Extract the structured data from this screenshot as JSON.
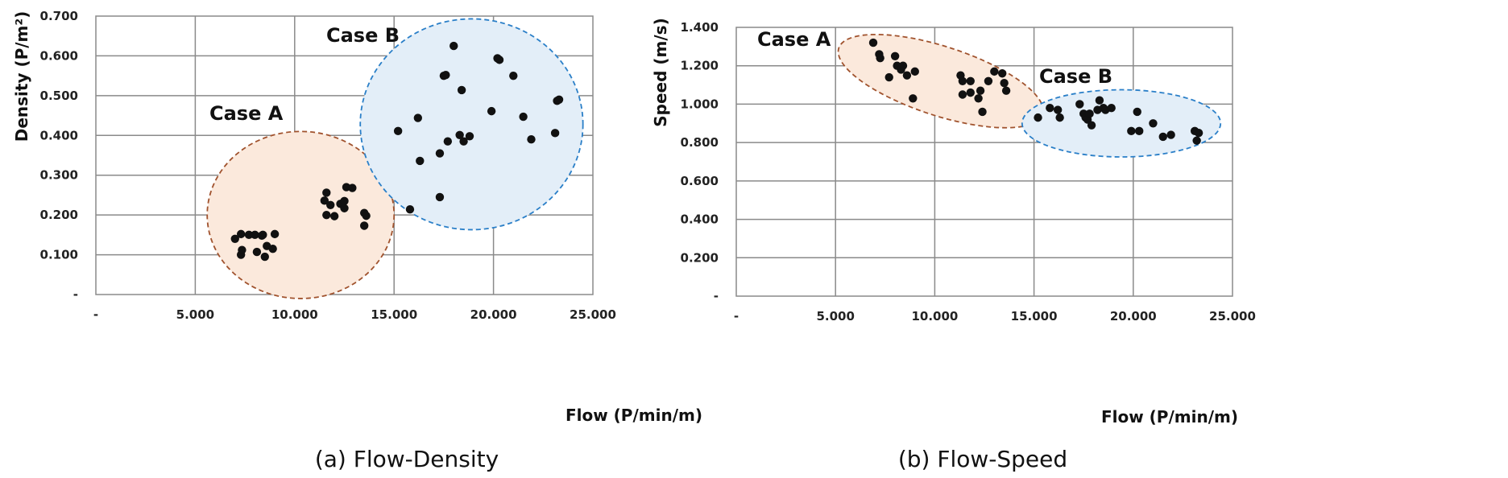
{
  "chart_data": [
    {
      "type": "scatter",
      "caption": "(a) Flow-Density",
      "xlabel": "Flow (P/min/m)",
      "ylabel": "Density (P/m²)",
      "xlim": [
        0,
        25000
      ],
      "ylim": [
        0,
        0.7
      ],
      "x_ticks": [
        "-",
        "5.000",
        "10.000",
        "15.000",
        "20.000",
        "25.000"
      ],
      "y_ticks": [
        "-",
        "0.100",
        "0.200",
        "0.300",
        "0.400",
        "0.500",
        "0.600",
        "0.700"
      ],
      "grid": true,
      "clusters": [
        {
          "label": "Case A",
          "fill": "#fbe9dc",
          "stroke": "#a0522d",
          "ellipse": {
            "cx": 10300,
            "cy": 0.2,
            "rx": 4700,
            "ry": 0.21
          }
        },
        {
          "label": "Case B",
          "fill": "#e3eef8",
          "stroke": "#2a7fc8",
          "ellipse": {
            "cx": 18900,
            "cy": 0.428,
            "rx": 5600,
            "ry": 0.265
          }
        }
      ],
      "points": [
        [
          7000,
          0.14
        ],
        [
          7300,
          0.152
        ],
        [
          7300,
          0.1
        ],
        [
          7350,
          0.112
        ],
        [
          7700,
          0.15
        ],
        [
          8000,
          0.15
        ],
        [
          8100,
          0.107
        ],
        [
          8350,
          0.148
        ],
        [
          8400,
          0.15
        ],
        [
          8500,
          0.095
        ],
        [
          8600,
          0.122
        ],
        [
          8900,
          0.115
        ],
        [
          9000,
          0.152
        ],
        [
          11500,
          0.236
        ],
        [
          11600,
          0.256
        ],
        [
          11600,
          0.2
        ],
        [
          11800,
          0.225
        ],
        [
          12000,
          0.197
        ],
        [
          12300,
          0.228
        ],
        [
          12500,
          0.235
        ],
        [
          12500,
          0.217
        ],
        [
          12600,
          0.27
        ],
        [
          12900,
          0.268
        ],
        [
          13500,
          0.205
        ],
        [
          13500,
          0.173
        ],
        [
          13600,
          0.198
        ],
        [
          15200,
          0.411
        ],
        [
          15800,
          0.214
        ],
        [
          16200,
          0.444
        ],
        [
          16300,
          0.336
        ],
        [
          17300,
          0.245
        ],
        [
          17300,
          0.355
        ],
        [
          17500,
          0.55
        ],
        [
          17600,
          0.552
        ],
        [
          17700,
          0.385
        ],
        [
          18000,
          0.625
        ],
        [
          18300,
          0.401
        ],
        [
          18400,
          0.514
        ],
        [
          18500,
          0.385
        ],
        [
          18800,
          0.398
        ],
        [
          19900,
          0.461
        ],
        [
          20200,
          0.594
        ],
        [
          20300,
          0.59
        ],
        [
          21000,
          0.55
        ],
        [
          21500,
          0.447
        ],
        [
          21900,
          0.39
        ],
        [
          23100,
          0.406
        ],
        [
          23200,
          0.487
        ],
        [
          23300,
          0.49
        ]
      ]
    },
    {
      "type": "scatter",
      "caption": "(b) Flow-Speed",
      "xlabel": "Flow (P/min/m)",
      "ylabel": "Speed (m/s)",
      "xlim": [
        0,
        25000
      ],
      "ylim": [
        0,
        1.4
      ],
      "x_ticks": [
        "-",
        "5.000",
        "10.000",
        "15.000",
        "20.000",
        "25.000"
      ],
      "y_ticks": [
        "-",
        "0.200",
        "0.400",
        "0.600",
        "0.800",
        "1.000",
        "1.200",
        "1.400"
      ],
      "grid": true,
      "clusters": [
        {
          "label": "Case A",
          "fill": "#fbe9dc",
          "stroke": "#a0522d",
          "ellipse": {
            "cx": 10300,
            "cy": 1.12,
            "rx": 5400,
            "ry": 0.18,
            "rotate": 18
          }
        },
        {
          "label": "Case B",
          "fill": "#e3eef8",
          "stroke": "#2a7fc8",
          "ellipse": {
            "cx": 19400,
            "cy": 0.9,
            "rx": 5000,
            "ry": 0.175
          }
        }
      ],
      "points": [
        [
          6900,
          1.32
        ],
        [
          7200,
          1.26
        ],
        [
          7250,
          1.24
        ],
        [
          7700,
          1.14
        ],
        [
          8000,
          1.25
        ],
        [
          8100,
          1.2
        ],
        [
          8300,
          1.18
        ],
        [
          8400,
          1.2
        ],
        [
          8600,
          1.15
        ],
        [
          8900,
          1.03
        ],
        [
          9000,
          1.17
        ],
        [
          11300,
          1.15
        ],
        [
          11400,
          1.12
        ],
        [
          11400,
          1.05
        ],
        [
          11800,
          1.12
        ],
        [
          11800,
          1.06
        ],
        [
          12200,
          1.03
        ],
        [
          12300,
          1.07
        ],
        [
          12400,
          0.96
        ],
        [
          12700,
          1.12
        ],
        [
          13000,
          1.17
        ],
        [
          13400,
          1.16
        ],
        [
          13500,
          1.11
        ],
        [
          13600,
          1.07
        ],
        [
          15200,
          0.93
        ],
        [
          15800,
          0.98
        ],
        [
          16200,
          0.97
        ],
        [
          16300,
          0.93
        ],
        [
          17300,
          1.0
        ],
        [
          17500,
          0.95
        ],
        [
          17600,
          0.93
        ],
        [
          17700,
          0.92
        ],
        [
          17800,
          0.95
        ],
        [
          17900,
          0.89
        ],
        [
          18200,
          0.97
        ],
        [
          18300,
          1.02
        ],
        [
          18500,
          0.98
        ],
        [
          18600,
          0.97
        ],
        [
          18900,
          0.98
        ],
        [
          19900,
          0.86
        ],
        [
          20200,
          0.96
        ],
        [
          20300,
          0.86
        ],
        [
          21000,
          0.9
        ],
        [
          21500,
          0.83
        ],
        [
          21900,
          0.84
        ],
        [
          23100,
          0.86
        ],
        [
          23200,
          0.81
        ],
        [
          23300,
          0.85
        ]
      ]
    }
  ]
}
